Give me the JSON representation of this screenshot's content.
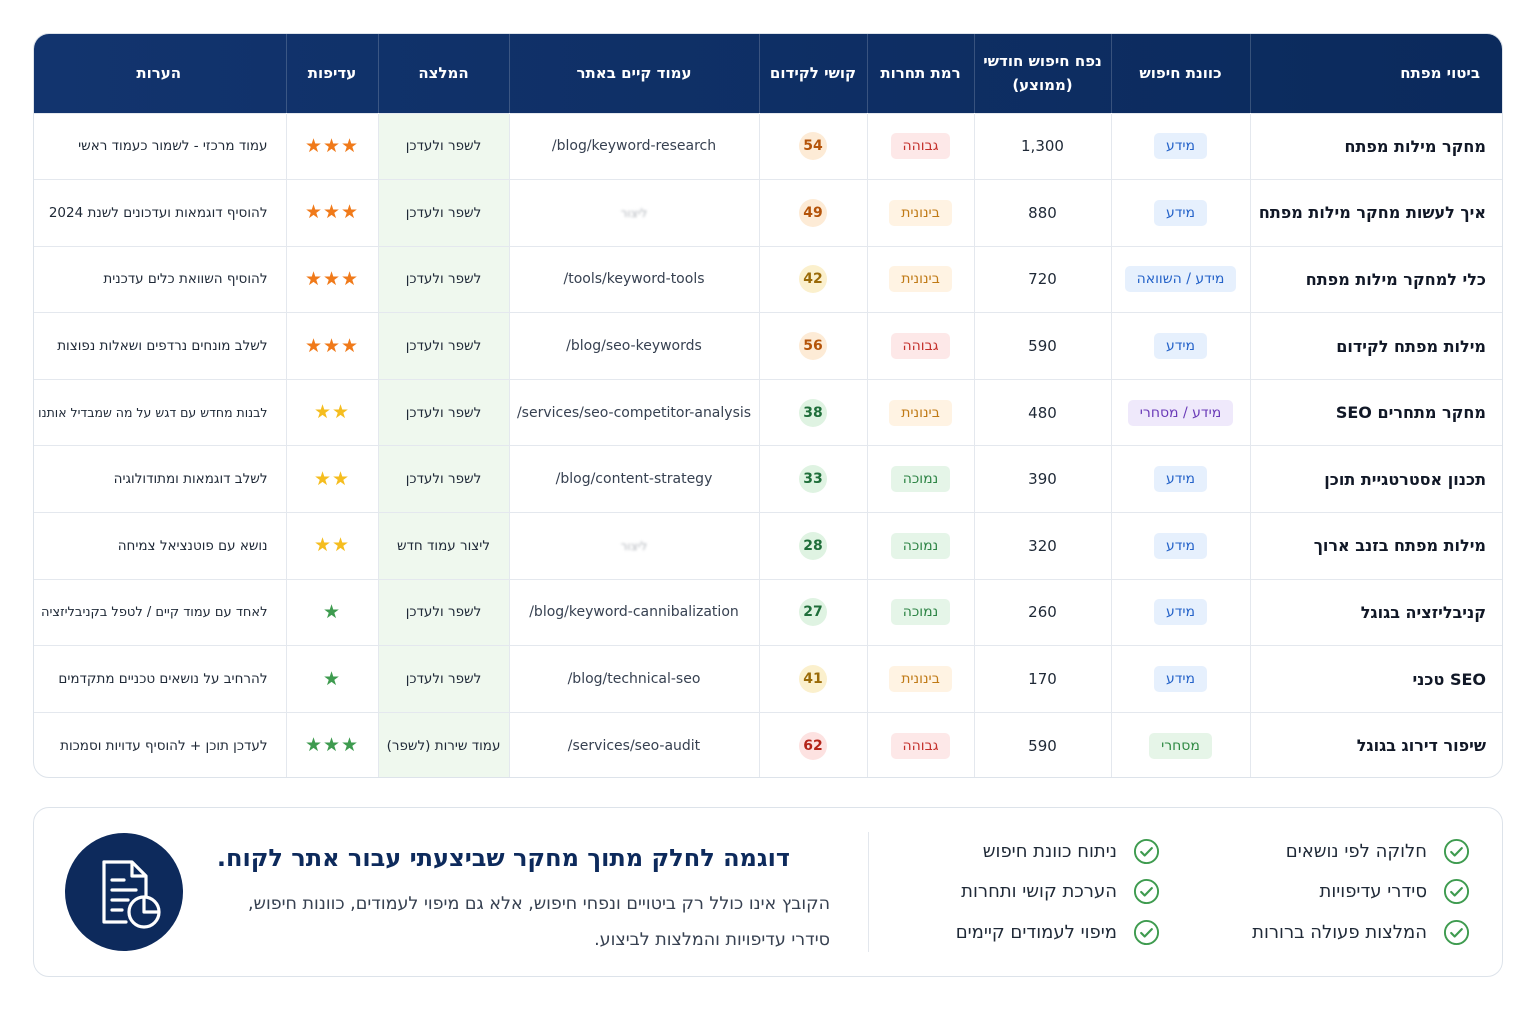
{
  "table": {
    "headers": {
      "keyword": "ביטוי מפתח",
      "intent": "כוונת חיפוש",
      "volume_line1": "נפח חיפוש חודשי",
      "volume_line2": "(ממוצע)",
      "competition": "רמת תחרות",
      "difficulty": "קושי לקידום",
      "page": "עמוד קיים באתר",
      "recommendation": "המלצה",
      "priority": "עדיפות",
      "notes": "הערות"
    },
    "rows": [
      {
        "keyword": "מחקר מילות מפתח",
        "intent": "מידע",
        "volume": "1,300",
        "competition": "גבוהה",
        "difficulty": "54",
        "page": "/blog/keyword-research",
        "recommendation": "לשפר ולעדכן",
        "priority": "★★★",
        "notes": "עמוד מרכזי - לשמור כעמוד ראשי"
      },
      {
        "keyword": "איך לעשות מחקר מילות מפתח",
        "intent": "מידע",
        "volume": "880",
        "competition": "בינונית",
        "difficulty": "49",
        "page": "ליצור",
        "recommendation": "לשפר ולעדכן",
        "priority": "★★★",
        "notes": "להוסיף דוגמאות ועדכונים לשנת 2024"
      },
      {
        "keyword": "כלי למחקר מילות מפתח",
        "intent": "מידע / השוואה",
        "volume": "720",
        "competition": "בינונית",
        "difficulty": "42",
        "page": "/tools/keyword-tools",
        "recommendation": "לשפר ולעדכן",
        "priority": "★★★",
        "notes": "להוסיף השוואת כלים עדכנית"
      },
      {
        "keyword": "מילות מפתח לקידום",
        "intent": "מידע",
        "volume": "590",
        "competition": "גבוהה",
        "difficulty": "56",
        "page": "/blog/seo-keywords",
        "recommendation": "לשפר ולעדכן",
        "priority": "★★★",
        "notes": "לשלב מונחים נרדפים ושאלות נפוצות"
      },
      {
        "keyword": "מחקר מתחרים SEO",
        "intent": "מידע / מסחרי",
        "volume": "480",
        "competition": "בינונית",
        "difficulty": "38",
        "page": "/services/seo-competitor-analysis",
        "recommendation": "לשפר ולעדכן",
        "priority": "★★",
        "notes": "לבנות מחדש עם דגש על מה שמבדיל אותנו"
      },
      {
        "keyword": "תכנון אסטרטגיית תוכן",
        "intent": "מידע",
        "volume": "390",
        "competition": "נמוכה",
        "difficulty": "33",
        "page": "/blog/content-strategy",
        "recommendation": "לשפר ולעדכן",
        "priority": "★★",
        "notes": "לשלב דוגמאות ומתודולוגיה"
      },
      {
        "keyword": "מילות מפתח בזנב ארוך",
        "intent": "מידע",
        "volume": "320",
        "competition": "נמוכה",
        "difficulty": "28",
        "page": "ליצור",
        "recommendation": "ליצור עמוד חדש",
        "priority": "★★",
        "notes": "נושא עם פוטנציאל צמיחה"
      },
      {
        "keyword": "קניבליזציה בגוגל",
        "intent": "מידע",
        "volume": "260",
        "competition": "נמוכה",
        "difficulty": "27",
        "page": "/blog/keyword-cannibalization",
        "recommendation": "לשפר ולעדכן",
        "priority": "★",
        "notes": "לאחד עם עמוד קיים / לטפל בקניבליזציה"
      },
      {
        "keyword": "SEO טכני",
        "intent": "מידע",
        "volume": "170",
        "competition": "בינונית",
        "difficulty": "41",
        "page": "/blog/technical-seo",
        "recommendation": "לשפר ולעדכן",
        "priority": "★",
        "notes": "להרחיב על נושאים טכניים מתקדמים"
      },
      {
        "keyword": "שיפור דירוג בגוגל",
        "intent": "מסחרי",
        "volume": "590",
        "competition": "גבוהה",
        "difficulty": "62",
        "page": "/services/seo-audit",
        "recommendation": "עמוד שירות (לשפר)",
        "priority": "★★★",
        "notes": "לעדכן תוכן + להוסיף עדויות וסמכות"
      }
    ]
  },
  "colors": {
    "header_bg": "#0b2a5c",
    "recommendation_bg": "#eff8ee",
    "competition_high": "#c4302b",
    "competition_mid": "#c07a16",
    "competition_low": "#2d8445",
    "priority_high_star": "#f07a1a",
    "priority_mid_star": "#f5bd1f",
    "priority_low_star": "#3e9b4f",
    "check_green": "#3e9b4f"
  },
  "info": {
    "features_col1": [
      "חלוקה לפי נושאים",
      "סידרי עדיפויות",
      "המלצות פעולה ברורות"
    ],
    "features_col2": [
      "ניתוח כוונת חיפוש",
      "הערכת קושי ותחרות",
      "מיפוי לעמודים קיימים"
    ],
    "title": "דוגמה לחלק מתוך מחקר שביצעתי עבור אתר לקוח.",
    "description_line1": "הקובץ אינו כולל רק ביטויים ונפחי חיפוש, אלא גם מיפוי לעמודים, כוונות חיפוש,",
    "description_line2": "סידרי עדיפויות והמלצות לביצוע.",
    "icon": "document-chart-icon",
    "check_icon": "check-circle-icon"
  }
}
